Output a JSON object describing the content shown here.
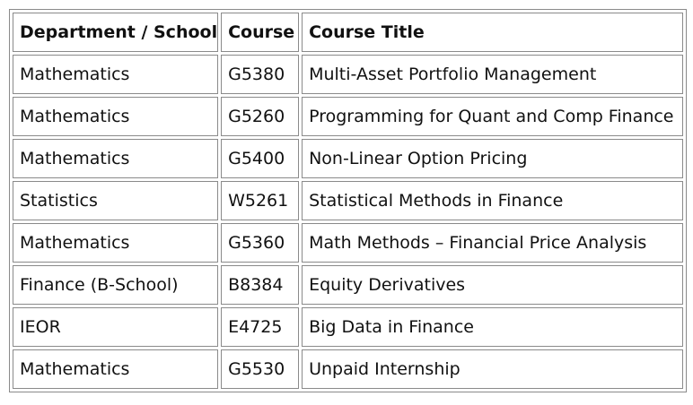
{
  "table": {
    "headers": [
      "Department / School",
      "Course",
      "Course Title"
    ],
    "rows": [
      [
        "Mathematics",
        "G5380",
        "Multi-Asset Portfolio Management"
      ],
      [
        "Mathematics",
        "G5260",
        "Programming for Quant and Comp Finance"
      ],
      [
        "Mathematics",
        "G5400",
        "Non-Linear Option Pricing"
      ],
      [
        "Statistics",
        "W5261",
        "Statistical Methods in Finance"
      ],
      [
        "Mathematics",
        "G5360",
        "Math Methods – Financial Price Analysis"
      ],
      [
        "Finance (B-School)",
        "B8384",
        "Equity Derivatives"
      ],
      [
        "IEOR",
        "E4725",
        "Big Data in Finance"
      ],
      [
        "Mathematics",
        "G5530",
        "Unpaid Internship"
      ]
    ]
  }
}
